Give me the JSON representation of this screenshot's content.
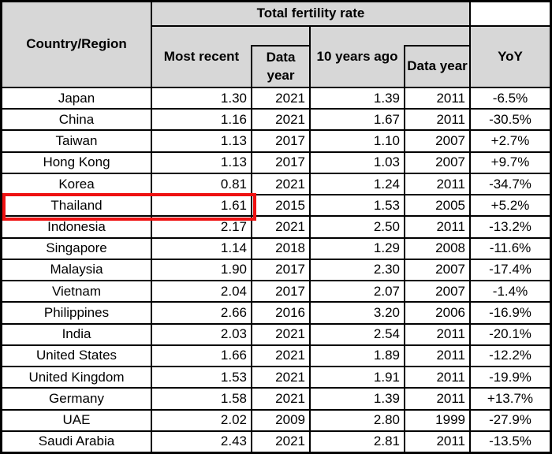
{
  "colors": {
    "header_bg": "#d7d7d7",
    "border": "#000000",
    "highlight_red": "#ee1111"
  },
  "table": {
    "header": {
      "country_region": "Country/Region",
      "group_title": "Total fertility rate",
      "most_recent": "Most recent",
      "data_year_1": "Data year",
      "ten_years_ago": "10 years ago",
      "data_year_2": "Data year",
      "yoy": "YoY"
    },
    "highlight": {
      "row": "Thailand",
      "columns": [
        "Country/Region",
        "Most recent"
      ],
      "color": "#ee1111"
    },
    "rows": [
      {
        "country": "Japan",
        "most_recent": "1.30",
        "data_year_1": "2021",
        "ten_years_ago": "1.39",
        "data_year_2": "2011",
        "yoy": "-6.5%"
      },
      {
        "country": "China",
        "most_recent": "1.16",
        "data_year_1": "2021",
        "ten_years_ago": "1.67",
        "data_year_2": "2011",
        "yoy": "-30.5%"
      },
      {
        "country": "Taiwan",
        "most_recent": "1.13",
        "data_year_1": "2017",
        "ten_years_ago": "1.10",
        "data_year_2": "2007",
        "yoy": "+2.7%"
      },
      {
        "country": "Hong Kong",
        "most_recent": "1.13",
        "data_year_1": "2017",
        "ten_years_ago": "1.03",
        "data_year_2": "2007",
        "yoy": "+9.7%"
      },
      {
        "country": "Korea",
        "most_recent": "0.81",
        "data_year_1": "2021",
        "ten_years_ago": "1.24",
        "data_year_2": "2011",
        "yoy": "-34.7%"
      },
      {
        "country": "Thailand",
        "most_recent": "1.61",
        "data_year_1": "2015",
        "ten_years_ago": "1.53",
        "data_year_2": "2005",
        "yoy": "+5.2%"
      },
      {
        "country": "Indonesia",
        "most_recent": "2.17",
        "data_year_1": "2021",
        "ten_years_ago": "2.50",
        "data_year_2": "2011",
        "yoy": "-13.2%"
      },
      {
        "country": "Singapore",
        "most_recent": "1.14",
        "data_year_1": "2018",
        "ten_years_ago": "1.29",
        "data_year_2": "2008",
        "yoy": "-11.6%"
      },
      {
        "country": "Malaysia",
        "most_recent": "1.90",
        "data_year_1": "2017",
        "ten_years_ago": "2.30",
        "data_year_2": "2007",
        "yoy": "-17.4%"
      },
      {
        "country": "Vietnam",
        "most_recent": "2.04",
        "data_year_1": "2017",
        "ten_years_ago": "2.07",
        "data_year_2": "2007",
        "yoy": "-1.4%"
      },
      {
        "country": "Philippines",
        "most_recent": "2.66",
        "data_year_1": "2016",
        "ten_years_ago": "3.20",
        "data_year_2": "2006",
        "yoy": "-16.9%"
      },
      {
        "country": "India",
        "most_recent": "2.03",
        "data_year_1": "2021",
        "ten_years_ago": "2.54",
        "data_year_2": "2011",
        "yoy": "-20.1%"
      },
      {
        "country": "United States",
        "most_recent": "1.66",
        "data_year_1": "2021",
        "ten_years_ago": "1.89",
        "data_year_2": "2011",
        "yoy": "-12.2%"
      },
      {
        "country": "United Kingdom",
        "most_recent": "1.53",
        "data_year_1": "2021",
        "ten_years_ago": "1.91",
        "data_year_2": "2011",
        "yoy": "-19.9%"
      },
      {
        "country": "Germany",
        "most_recent": "1.58",
        "data_year_1": "2021",
        "ten_years_ago": "1.39",
        "data_year_2": "2011",
        "yoy": "+13.7%"
      },
      {
        "country": "UAE",
        "most_recent": "2.02",
        "data_year_1": "2009",
        "ten_years_ago": "2.80",
        "data_year_2": "1999",
        "yoy": "-27.9%"
      },
      {
        "country": "Saudi Arabia",
        "most_recent": "2.43",
        "data_year_1": "2021",
        "ten_years_ago": "2.81",
        "data_year_2": "2011",
        "yoy": "-13.5%"
      }
    ]
  },
  "chart_data": {
    "type": "table",
    "title": "Total fertility rate",
    "columns": [
      "Country/Region",
      "Most recent",
      "Data year",
      "10 years ago",
      "Data year",
      "YoY"
    ],
    "rows": [
      [
        "Japan",
        1.3,
        2021,
        1.39,
        2011,
        "-6.5%"
      ],
      [
        "China",
        1.16,
        2021,
        1.67,
        2011,
        "-30.5%"
      ],
      [
        "Taiwan",
        1.13,
        2017,
        1.1,
        2007,
        "+2.7%"
      ],
      [
        "Hong Kong",
        1.13,
        2017,
        1.03,
        2007,
        "+9.7%"
      ],
      [
        "Korea",
        0.81,
        2021,
        1.24,
        2011,
        "-34.7%"
      ],
      [
        "Thailand",
        1.61,
        2015,
        1.53,
        2005,
        "+5.2%"
      ],
      [
        "Indonesia",
        2.17,
        2021,
        2.5,
        2011,
        "-13.2%"
      ],
      [
        "Singapore",
        1.14,
        2018,
        1.29,
        2008,
        "-11.6%"
      ],
      [
        "Malaysia",
        1.9,
        2017,
        2.3,
        2007,
        "-17.4%"
      ],
      [
        "Vietnam",
        2.04,
        2017,
        2.07,
        2007,
        "-1.4%"
      ],
      [
        "Philippines",
        2.66,
        2016,
        3.2,
        2006,
        "-16.9%"
      ],
      [
        "India",
        2.03,
        2021,
        2.54,
        2011,
        "-20.1%"
      ],
      [
        "United States",
        1.66,
        2021,
        1.89,
        2011,
        "-12.2%"
      ],
      [
        "United Kingdom",
        1.53,
        2021,
        1.91,
        2011,
        "-19.9%"
      ],
      [
        "Germany",
        1.58,
        2021,
        1.39,
        2011,
        "+13.7%"
      ],
      [
        "UAE",
        2.02,
        2009,
        2.8,
        1999,
        "-27.9%"
      ],
      [
        "Saudi Arabia",
        2.43,
        2021,
        2.81,
        2011,
        "-13.5%"
      ]
    ],
    "annotations": [
      "red box highlighting Thailand row: Country/Region and Most recent cells"
    ]
  }
}
